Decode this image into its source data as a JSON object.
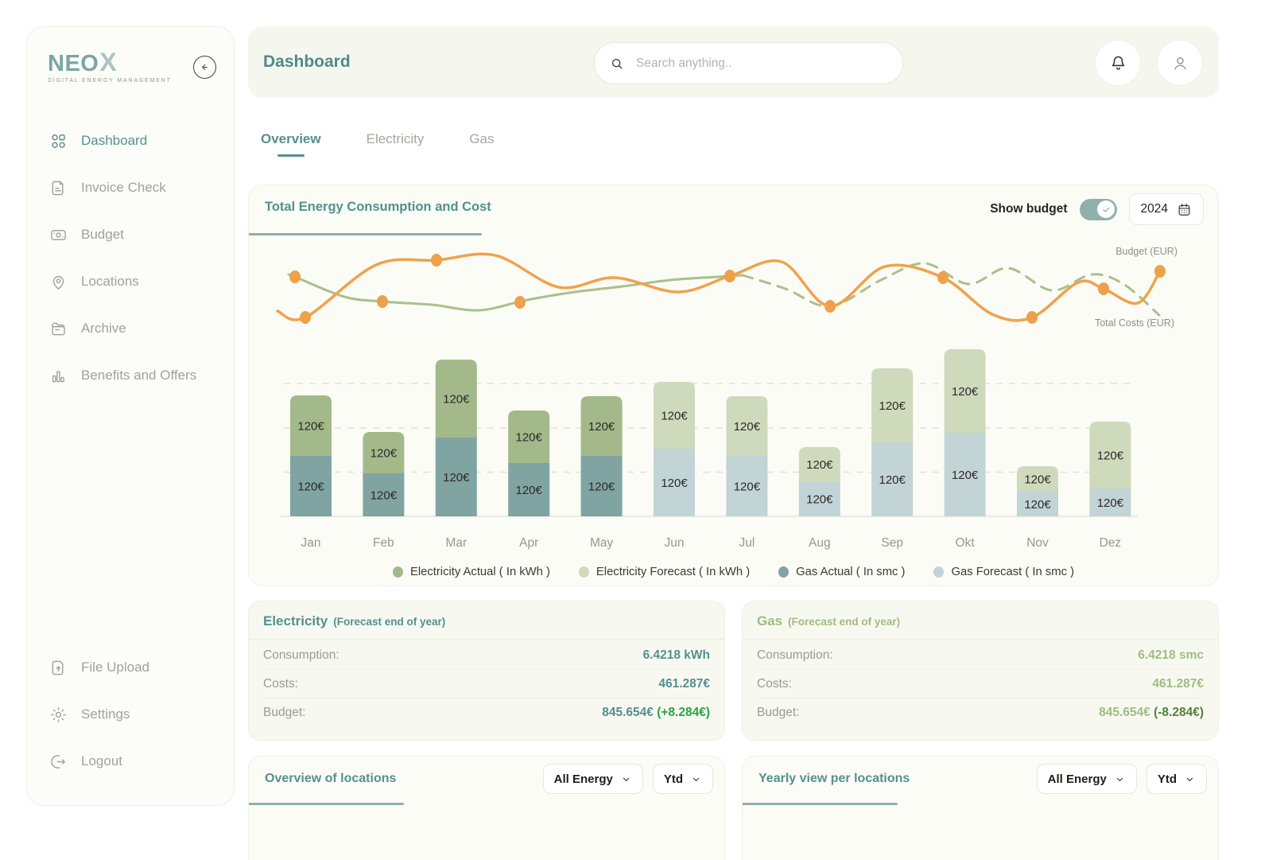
{
  "brand": {
    "name_main": "NEO",
    "name_accent": "X",
    "tagline": "DIGITAL ENERGY MANAGEMENT"
  },
  "sidebar": {
    "main_items": [
      {
        "label": "Dashboard",
        "icon": "dashboard",
        "active": true
      },
      {
        "label": "Invoice Check",
        "icon": "invoice",
        "active": false
      },
      {
        "label": "Budget",
        "icon": "budget",
        "active": false
      },
      {
        "label": "Locations",
        "icon": "locations",
        "active": false
      },
      {
        "label": "Archive",
        "icon": "archive",
        "active": false
      },
      {
        "label": "Benefits and Offers",
        "icon": "benefits",
        "active": false
      }
    ],
    "footer_items": [
      {
        "label": "File Upload",
        "icon": "upload",
        "active": false
      },
      {
        "label": "Settings",
        "icon": "settings",
        "active": false
      },
      {
        "label": "Logout",
        "icon": "logout",
        "active": false
      }
    ]
  },
  "header": {
    "title": "Dashboard",
    "search_placeholder": "Search anything.."
  },
  "tabs": [
    {
      "label": "Overview",
      "active": true
    },
    {
      "label": "Electricity",
      "active": false
    },
    {
      "label": "Gas",
      "active": false
    }
  ],
  "chart_card": {
    "title": "Total Energy Consumption and Cost",
    "show_budget_label": "Show budget",
    "budget_toggle_on": true,
    "year": "2024"
  },
  "chart_data": {
    "type": "stacked-bar+line",
    "categories": [
      "Jan",
      "Feb",
      "Mar",
      "Apr",
      "May",
      "Jun",
      "Jul",
      "Aug",
      "Sep",
      "Okt",
      "Nov",
      "Dez"
    ],
    "actual_months": 5,
    "segment_label": "120€",
    "colors": {
      "electricity_actual": "#a3b98a",
      "electricity_forecast": "#cfdabc",
      "gas_actual": "#7fa4a1",
      "gas_forecast": "#c3d4d6"
    },
    "series": [
      {
        "name": "Electricity Actual ( In kWh )",
        "color": "#a3b98a"
      },
      {
        "name": "Electricity Forecast ( In kWh )",
        "color": "#cfdabc"
      },
      {
        "name": "Gas Actual ( In smc )",
        "color": "#7fa4a1"
      },
      {
        "name": "Gas Forecast ( In smc )",
        "color": "#c3d4d6"
      }
    ],
    "electricity_rel_heights": [
      76,
      52,
      98,
      66,
      75,
      84,
      75,
      43,
      93,
      105,
      32,
      84
    ],
    "gas_rel_heights": [
      76,
      54,
      99,
      67,
      76,
      85,
      76,
      44,
      93,
      105,
      31,
      35
    ],
    "lines": {
      "costs": {
        "label": "Total Costs (EUR)",
        "color": "#f0a24c",
        "points": [
          [
            36,
            94
          ],
          [
            71,
            102
          ],
          [
            160,
            36
          ],
          [
            236,
            30
          ],
          [
            310,
            24
          ],
          [
            390,
            64
          ],
          [
            460,
            52
          ],
          [
            540,
            70
          ],
          [
            605,
            50
          ],
          [
            670,
            32
          ],
          [
            731,
            88
          ],
          [
            800,
            38
          ],
          [
            873,
            52
          ],
          [
            935,
            98
          ],
          [
            985,
            102
          ],
          [
            1043,
            58
          ],
          [
            1075,
            66
          ],
          [
            1118,
            84
          ],
          [
            1146,
            44
          ]
        ]
      },
      "budget": {
        "label": "Budget (EUR)",
        "color": "#a9c08b",
        "solid_points": [
          [
            50,
            48
          ],
          [
            58,
            51
          ],
          [
            120,
            76
          ],
          [
            168,
            82
          ],
          [
            230,
            86
          ],
          [
            290,
            93
          ],
          [
            350,
            80
          ],
          [
            410,
            70
          ],
          [
            470,
            63
          ],
          [
            530,
            55
          ],
          [
            590,
            51
          ],
          [
            621,
            49
          ]
        ],
        "dashed_points": [
          [
            621,
            49
          ],
          [
            675,
            66
          ],
          [
            731,
            88
          ],
          [
            795,
            55
          ],
          [
            850,
            34
          ],
          [
            905,
            60
          ],
          [
            955,
            40
          ],
          [
            1010,
            68
          ],
          [
            1060,
            48
          ],
          [
            1100,
            60
          ],
          [
            1145,
            99
          ]
        ]
      },
      "dot_color": "#efa04a",
      "dots": [
        [
          58,
          51
        ],
        [
          71,
          102
        ],
        [
          168,
          82
        ],
        [
          236,
          30
        ],
        [
          341,
          83
        ],
        [
          605,
          50
        ],
        [
          731,
          88
        ],
        [
          873,
          52
        ],
        [
          985,
          102
        ],
        [
          1075,
          66
        ],
        [
          1146,
          44
        ]
      ]
    }
  },
  "summary_cards": [
    {
      "title": "Electricity",
      "subtitle": "(Forecast end of year)",
      "accent": "#54908d",
      "delta_color": "#2ba24a",
      "rows": [
        {
          "label": "Consumption:",
          "value": "6.4218 kWh"
        },
        {
          "label": "Costs:",
          "value": "461.287€"
        },
        {
          "label": "Budget:",
          "value": "845.654€",
          "delta": "(+8.284€)"
        }
      ]
    },
    {
      "title": "Gas",
      "subtitle": "(Forecast end of year)",
      "accent": "#a0bc80",
      "delta_color": "#55813c",
      "rows": [
        {
          "label": "Consumption:",
          "value": "6.4218 smc"
        },
        {
          "label": "Costs:",
          "value": "461.287€"
        },
        {
          "label": "Budget:",
          "value": "845.654€",
          "delta": "(-8.284€)"
        }
      ]
    }
  ],
  "bottom_cards": [
    {
      "title": "Overview of locations",
      "dropdowns": [
        "All Energy",
        "Ytd"
      ]
    },
    {
      "title": "Yearly view per locations",
      "dropdowns": [
        "All Energy",
        "Ytd"
      ]
    }
  ]
}
